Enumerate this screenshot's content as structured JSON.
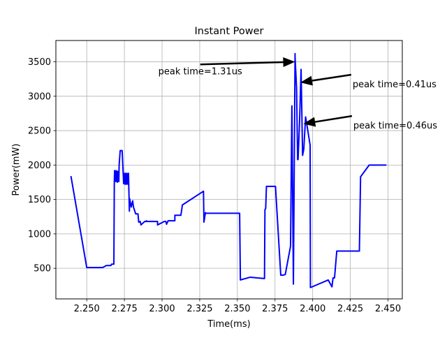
{
  "chart_data": {
    "type": "line",
    "title": "Instant Power",
    "xlabel": "Time(ms)",
    "ylabel": "Power(mW)",
    "xlim": [
      2.2295,
      2.4595
    ],
    "ylim": [
      55,
      3810
    ],
    "xticks": [
      2.25,
      2.275,
      2.3,
      2.325,
      2.35,
      2.375,
      2.4,
      2.425,
      2.45
    ],
    "xtick_labels": [
      "2.250",
      "2.275",
      "2.300",
      "2.325",
      "2.350",
      "2.375",
      "2.400",
      "2.425",
      "2.450"
    ],
    "yticks": [
      500,
      1000,
      1500,
      2000,
      2500,
      3000,
      3500
    ],
    "ytick_labels": [
      "500",
      "1000",
      "1500",
      "2000",
      "2500",
      "3000",
      "3500"
    ],
    "grid": true,
    "series": [
      {
        "color": "#0000ff",
        "x": [
          2.2395,
          2.25,
          2.2605,
          2.263,
          2.266,
          2.2665,
          2.268,
          2.2683,
          2.2685,
          2.2693,
          2.2695,
          2.2703,
          2.2705,
          2.2713,
          2.2715,
          2.2722,
          2.2725,
          2.2735,
          2.2745,
          2.2748,
          2.2755,
          2.2757,
          2.2765,
          2.2767,
          2.2775,
          2.2777,
          2.2783,
          2.2785,
          2.2795,
          2.2805,
          2.281,
          2.2825,
          2.283,
          2.284,
          2.2845,
          2.2855,
          2.286,
          2.2885,
          2.2893,
          2.2896,
          2.29,
          2.297,
          2.297,
          2.3015,
          2.3025,
          2.303,
          2.304,
          2.3045,
          2.3085,
          2.3085,
          2.3125,
          2.3135,
          2.3275,
          2.3278,
          2.3288,
          2.329,
          2.3297,
          2.3515,
          2.352,
          2.3585,
          2.368,
          2.3683,
          2.3688,
          2.3693,
          2.3698,
          2.3753,
          2.3788,
          2.3803,
          2.3818,
          2.3853,
          2.3862,
          2.3872,
          2.3883,
          2.3883,
          2.3893,
          2.39,
          2.3903,
          2.3913,
          2.3923,
          2.3933,
          2.3941,
          2.3953,
          2.3983,
          2.3985,
          2.4103,
          2.4128,
          2.4135,
          2.4145,
          2.416,
          2.4165,
          2.431,
          2.4318,
          2.4375,
          2.449
        ],
        "values": [
          1840,
          510,
          510,
          540,
          540,
          560,
          560,
          1750,
          1920,
          1760,
          1920,
          1750,
          1910,
          1760,
          2000,
          2210,
          2210,
          2210,
          1730,
          1880,
          1720,
          1880,
          1720,
          1880,
          1720,
          1880,
          1330,
          1510,
          1390,
          1480,
          1390,
          1290,
          1290,
          1290,
          1170,
          1180,
          1130,
          1180,
          1180,
          1190,
          1180,
          1180,
          1130,
          1180,
          1180,
          1140,
          1190,
          1190,
          1190,
          1270,
          1270,
          1420,
          1620,
          1170,
          1310,
          1300,
          1300,
          1300,
          330,
          370,
          350,
          1350,
          1370,
          1690,
          1690,
          1690,
          400,
          400,
          410,
          820,
          2860,
          270,
          3620,
          3570,
          3120,
          2080,
          2080,
          2650,
          3390,
          2140,
          2230,
          2700,
          2290,
          220,
          330,
          230,
          360,
          360,
          750,
          750,
          750,
          1830,
          2000,
          2000
        ]
      }
    ],
    "annotations": [
      {
        "text": "peak time=1.31us",
        "text_x": 2.2975,
        "text_y": 3320,
        "arrow_x": 2.3883,
        "arrow_y": 3500
      },
      {
        "text": "peak time=0.41us",
        "text_x": 2.4265,
        "text_y": 3130,
        "arrow_x": 2.3918,
        "arrow_y": 3200
      },
      {
        "text": "peak time=0.46us",
        "text_x": 2.427,
        "text_y": 2530,
        "arrow_x": 2.3938,
        "arrow_y": 2600
      }
    ]
  }
}
